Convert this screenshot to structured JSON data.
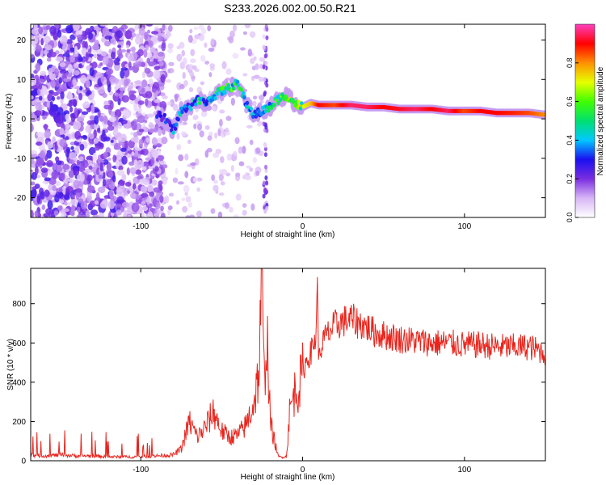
{
  "title": "S233.2026.002.00.50.R21",
  "chart_data": [
    {
      "type": "heatmap",
      "xlabel": "Height of straight line (km)",
      "ylabel": "Frequency (Hz)",
      "xlim": [
        -168,
        150
      ],
      "ylim": [
        -25,
        24
      ],
      "xticks": [
        -100,
        0,
        100
      ],
      "yticks": [
        -20,
        -10,
        0,
        10,
        20
      ],
      "colorbar": {
        "label": "Normalized spectral amplitude",
        "range": [
          0,
          1
        ],
        "ticks": [
          "0.0",
          "0.2",
          "0.4",
          "0.6",
          "0.8"
        ],
        "tick_values": [
          0,
          0.2,
          0.4,
          0.6,
          0.8
        ],
        "stops": [
          "#ffffff",
          "#d8b6f6",
          "#7a2ee0",
          "#1a10f0",
          "#00c8ff",
          "#00e070",
          "#40ff00",
          "#e6ff00",
          "#ff9000",
          "#ff0000",
          "#ff40c0"
        ]
      },
      "ridge": {
        "x": [
          -90,
          -85,
          -80,
          -75,
          -70,
          -65,
          -60,
          -55,
          -50,
          -45,
          -40,
          -35,
          -30,
          -25,
          -20,
          -15,
          -10,
          -5,
          0,
          5,
          10,
          20,
          30,
          40,
          50,
          60,
          70,
          80,
          90,
          100,
          110,
          120,
          130,
          140,
          150
        ],
        "freq": [
          1,
          0,
          -3,
          2,
          3,
          5,
          4,
          6,
          7,
          8,
          9,
          4,
          1,
          2,
          3,
          5,
          6,
          4,
          3,
          4,
          3.5,
          3.5,
          3.5,
          3,
          3,
          2.5,
          2.5,
          2.5,
          2,
          2,
          2,
          1.5,
          1.5,
          1.5,
          1
        ],
        "amp": [
          0.3,
          0.35,
          0.4,
          0.45,
          0.4,
          0.5,
          0.45,
          0.5,
          0.55,
          0.6,
          0.55,
          0.45,
          0.4,
          0.45,
          0.5,
          0.6,
          0.7,
          0.65,
          0.7,
          0.75,
          0.9,
          0.85,
          0.95,
          0.95,
          0.9,
          0.92,
          0.95,
          0.9,
          0.95,
          0.85,
          0.9,
          0.9,
          0.88,
          0.85,
          0.8
        ]
      }
    },
    {
      "type": "line",
      "xlabel": "Height of straight line (km)",
      "ylabel": "SNR (10 * v/v)",
      "xlim": [
        -168,
        150
      ],
      "ylim": [
        0,
        980
      ],
      "xticks": [
        -100,
        0,
        100
      ],
      "yticks": [
        0,
        200,
        400,
        600,
        800
      ],
      "series": [
        {
          "name": "SNR",
          "color": "#e8241c",
          "x": [
            -168,
            -160,
            -150,
            -140,
            -130,
            -120,
            -110,
            -100,
            -90,
            -80,
            -75,
            -70,
            -65,
            -60,
            -55,
            -50,
            -45,
            -40,
            -35,
            -30,
            -27,
            -25,
            -24,
            -22,
            -20,
            -18,
            -15,
            -12,
            -10,
            -8,
            -5,
            -2,
            0,
            2,
            5,
            8,
            9,
            10,
            12,
            15,
            20,
            25,
            30,
            35,
            40,
            45,
            50,
            60,
            70,
            80,
            90,
            100,
            110,
            120,
            130,
            140,
            150
          ],
          "y": [
            30,
            25,
            30,
            25,
            25,
            20,
            20,
            20,
            25,
            30,
            60,
            200,
            120,
            170,
            250,
            150,
            120,
            130,
            180,
            300,
            450,
            960,
            400,
            650,
            200,
            120,
            20,
            20,
            20,
            250,
            350,
            380,
            450,
            500,
            550,
            620,
            900,
            500,
            600,
            640,
            690,
            710,
            720,
            700,
            680,
            650,
            640,
            620,
            610,
            600,
            600,
            590,
            590,
            580,
            580,
            580,
            550
          ],
          "noise": 0.12
        }
      ]
    }
  ]
}
